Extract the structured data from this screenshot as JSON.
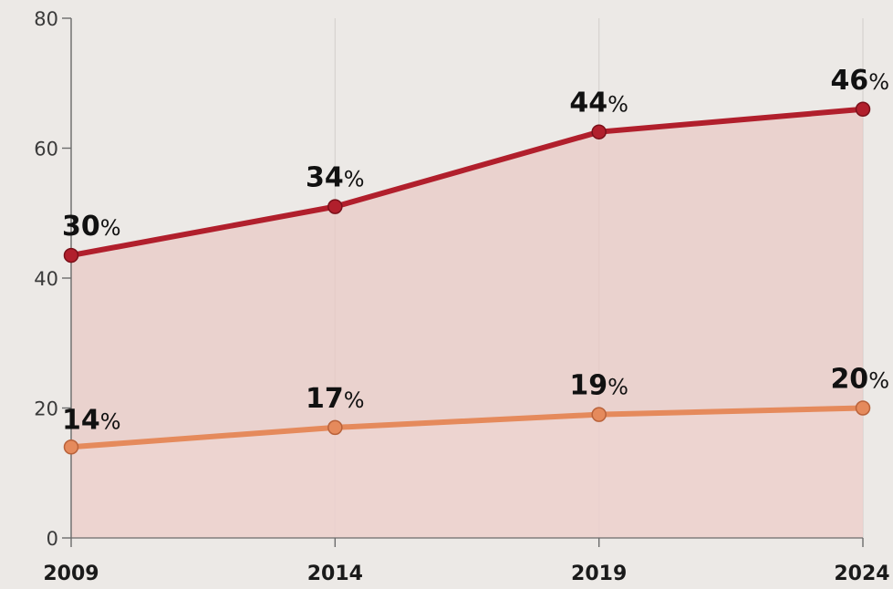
{
  "chart_data": {
    "type": "line",
    "title": "",
    "xlabel": "",
    "ylabel": "",
    "x": [
      "2009",
      "2014",
      "2019",
      "2024"
    ],
    "yticks": [
      0,
      20,
      40,
      60,
      80
    ],
    "ylim": [
      0,
      80
    ],
    "grid": "vertical lines at each x category",
    "legend": "none",
    "series": [
      {
        "color": "#b11f2c",
        "values": [
          43.5,
          51,
          62.5,
          66
        ],
        "labels": [
          "30%",
          "34%",
          "44%",
          "46%"
        ],
        "fill": "#e9c9c6"
      },
      {
        "color": "#e58a5c",
        "values": [
          14,
          17,
          19,
          20
        ],
        "labels": [
          "14%",
          "17%",
          "19%",
          "20%"
        ],
        "fill": "#eed6d2"
      }
    ]
  }
}
